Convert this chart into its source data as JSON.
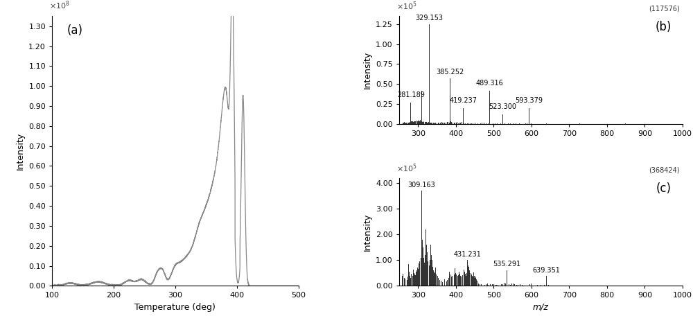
{
  "panel_a": {
    "label": "(a)",
    "xlabel": "Temperature (deg)",
    "ylabel": "Intensity",
    "xlim": [
      100,
      500
    ],
    "ylim": [
      0,
      135000000.0
    ],
    "yticks": [
      0,
      10000000.0,
      20000000.0,
      30000000.0,
      40000000.0,
      50000000.0,
      60000000.0,
      70000000.0,
      80000000.0,
      90000000.0,
      100000000.0,
      110000000.0,
      120000000.0,
      130000000.0
    ],
    "ytick_labels": [
      "0.00",
      "0.10",
      "0.20",
      "0.30",
      "0.40",
      "0.50",
      "0.60",
      "0.70",
      "0.80",
      "0.90",
      "1.00",
      "1.10",
      "1.20",
      "1.30"
    ],
    "xticks": [
      100,
      200,
      300,
      400,
      500
    ]
  },
  "panel_b": {
    "label": "(b)",
    "corner_text": "(117576)",
    "xlabel": "",
    "ylabel": "Intensity",
    "xlim": [
      250,
      1000
    ],
    "ylim": [
      0,
      135000.0
    ],
    "yticks": [
      0,
      25000.0,
      50000.0,
      75000.0,
      100000.0,
      125000.0
    ],
    "ytick_labels": [
      "0.00",
      "0.25",
      "0.50",
      "0.75",
      "1.00",
      "1.25"
    ],
    "xticks": [
      300,
      400,
      500,
      600,
      700,
      800,
      900,
      1000
    ],
    "peaks": [
      {
        "mz": 281.189,
        "intensity": 27000.0,
        "label": "281.189"
      },
      {
        "mz": 329.153,
        "intensity": 125000.0,
        "label": "329.153"
      },
      {
        "mz": 385.252,
        "intensity": 57500.0,
        "label": "385.252"
      },
      {
        "mz": 419.237,
        "intensity": 20000.0,
        "label": "419.237"
      },
      {
        "mz": 489.316,
        "intensity": 42000.0,
        "label": "489.316"
      },
      {
        "mz": 523.3,
        "intensity": 12000.0,
        "label": "523.300"
      },
      {
        "mz": 593.379,
        "intensity": 20000.0,
        "label": "593.379"
      }
    ]
  },
  "panel_c": {
    "label": "(c)",
    "corner_text": "(368424)",
    "xlabel": "m/z",
    "ylabel": "Intensity",
    "xlim": [
      250,
      1000
    ],
    "ylim": [
      0,
      420000.0
    ],
    "yticks": [
      0,
      100000.0,
      200000.0,
      300000.0,
      400000.0
    ],
    "ytick_labels": [
      "0.00",
      "1.00",
      "2.00",
      "3.00",
      "4.00"
    ],
    "xticks": [
      300,
      400,
      500,
      600,
      700,
      800,
      900,
      1000
    ],
    "peaks": [
      {
        "mz": 309.163,
        "intensity": 372000.0,
        "label": "309.163"
      },
      {
        "mz": 431.231,
        "intensity": 102000.0,
        "label": "431.231"
      },
      {
        "mz": 535.291,
        "intensity": 60000.0,
        "label": "535.291"
      },
      {
        "mz": 639.351,
        "intensity": 38000.0,
        "label": "639.351"
      }
    ]
  },
  "line_color": "#888888",
  "bar_color": "#333333",
  "background_color": "#ffffff",
  "label_fontsize": 12,
  "tick_fontsize": 8,
  "axis_label_fontsize": 9,
  "annot_fontsize": 7
}
